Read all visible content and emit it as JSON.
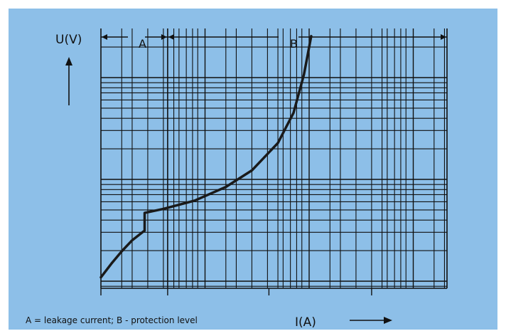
{
  "figure": {
    "background": "#8dbfe8",
    "caption": "A = leakage current; B - protection level"
  },
  "chart_data": {
    "type": "line",
    "x_scale": "log",
    "y_scale": "log",
    "xlabel": "I(A)",
    "ylabel": "U(V)",
    "grid": true,
    "regions": [
      {
        "label": "A",
        "description": "leakage current"
      },
      {
        "label": "B",
        "description": "protection level"
      }
    ],
    "series": [
      {
        "color": "#1a1a1a",
        "points": [
          [
            0.0,
            0.04
          ],
          [
            0.1,
            0.09
          ],
          [
            0.2,
            0.135
          ],
          [
            0.3,
            0.175
          ],
          [
            0.4,
            0.205
          ],
          [
            0.42,
            0.21
          ],
          [
            0.42,
            0.275
          ],
          [
            0.6,
            0.29
          ],
          [
            0.9,
            0.32
          ],
          [
            1.2,
            0.37
          ],
          [
            1.45,
            0.43
          ],
          [
            1.7,
            0.53
          ],
          [
            1.85,
            0.64
          ],
          [
            1.95,
            0.78
          ],
          [
            2.02,
            0.92
          ]
        ]
      }
    ]
  }
}
